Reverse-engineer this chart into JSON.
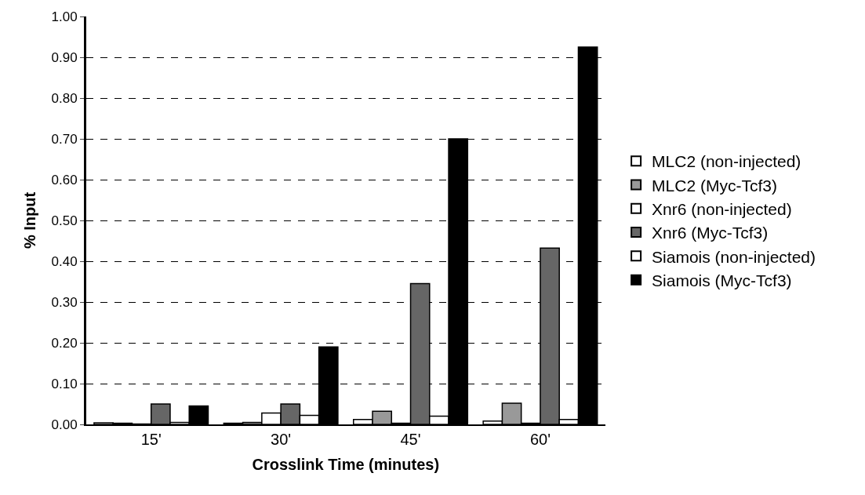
{
  "chart_data": {
    "type": "bar",
    "xlabel": "Crosslink Time (minutes)",
    "ylabel": "% Input",
    "categories": [
      "15'",
      "30'",
      "45'",
      "60'"
    ],
    "series": [
      {
        "name": "MLC2 (non-injected)",
        "color": "#ffffff",
        "values": [
          0.004,
          0.003,
          0.012,
          0.008
        ]
      },
      {
        "name": "MLC2 (Myc-Tcf3)",
        "color": "#999999",
        "values": [
          0.003,
          0.005,
          0.032,
          0.052
        ]
      },
      {
        "name": "Xnr6 (non-injected)",
        "color": "#ffffff",
        "values": [
          0.001,
          0.028,
          0.003,
          0.003
        ]
      },
      {
        "name": "Xnr6 (Myc-Tcf3)",
        "color": "#666666",
        "values": [
          0.05,
          0.05,
          0.345,
          0.432
        ]
      },
      {
        "name": "Siamois (non-injected)",
        "color": "#ffffff",
        "values": [
          0.005,
          0.022,
          0.02,
          0.012
        ]
      },
      {
        "name": "Siamois (Myc-Tcf3)",
        "color": "#000000",
        "values": [
          0.045,
          0.19,
          0.7,
          0.925
        ]
      }
    ],
    "ylim": [
      0,
      1
    ],
    "yticks": [
      {
        "value": 0,
        "label": "0.00"
      },
      {
        "value": 0.1,
        "label": "0.10"
      },
      {
        "value": 0.2,
        "label": "0.20"
      },
      {
        "value": 0.3,
        "label": "0.30"
      },
      {
        "value": 0.4,
        "label": "0.40"
      },
      {
        "value": 0.5,
        "label": "0.50"
      },
      {
        "value": 0.6,
        "label": "0.60"
      },
      {
        "value": 0.7,
        "label": "0.70"
      },
      {
        "value": 0.8,
        "label": "0.80"
      },
      {
        "value": 0.9,
        "label": "0.90"
      },
      {
        "value": 1,
        "label": "1.00"
      }
    ],
    "grid": "y",
    "legend": "right"
  }
}
